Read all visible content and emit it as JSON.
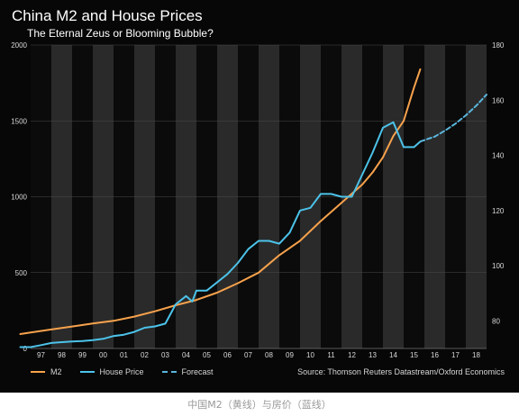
{
  "caption": "中国M2（黄线）与房价（蓝线）",
  "colors": {
    "m2": "#f7a24c",
    "house": "#4cc3ea",
    "forecast": "#5ab6dd",
    "band": "#2a2a2a",
    "grid": "#4a4a4a",
    "text": "#d8d8d8"
  },
  "chart_data": {
    "type": "line",
    "title": "China M2 and House Prices",
    "subtitle": "The Eternal Zeus or Blooming Bubble?",
    "x_tick_labels": [
      "97",
      "98",
      "99",
      "00",
      "01",
      "02",
      "03",
      "04",
      "05",
      "06",
      "07",
      "08",
      "09",
      "10",
      "11",
      "12",
      "13",
      "14",
      "15",
      "16",
      "17",
      "18"
    ],
    "x_range": [
      1997,
      2019
    ],
    "y_left": {
      "range": [
        0,
        2000
      ],
      "ticks": [
        "0",
        "500",
        "1000",
        "1500",
        "2000"
      ]
    },
    "y_right": {
      "range": [
        70,
        180
      ],
      "ticks": [
        "80",
        "100",
        "120",
        "140",
        "160",
        "180"
      ]
    },
    "legend_position": "bottom-left",
    "legend": [
      {
        "name": "M2",
        "color": "#f7a24c",
        "style": "solid"
      },
      {
        "name": "House Price",
        "color": "#4cc3ea",
        "style": "solid"
      },
      {
        "name": "Forecast",
        "color": "#5ab6dd",
        "style": "dashed"
      }
    ],
    "source": "Source: Thomson Reuters Datastream/Oxford Economics",
    "series": [
      {
        "name": "M2",
        "axis": "left",
        "x": [
          1996.5,
          1997,
          1998,
          1999,
          2000,
          2001,
          2002,
          2003,
          2004,
          2005,
          2006,
          2007,
          2008,
          2009,
          2010,
          2011,
          2012,
          2013,
          2013.5,
          2014,
          2014.5,
          2015,
          2015.5,
          2015.8
        ],
        "y": [
          95,
          105,
          125,
          145,
          165,
          182,
          210,
          245,
          285,
          320,
          368,
          430,
          500,
          615,
          710,
          840,
          960,
          1080,
          1160,
          1260,
          1400,
          1500,
          1720,
          1840
        ]
      },
      {
        "name": "House Price",
        "axis": "right",
        "x": [
          1996.5,
          1997,
          1997.5,
          1998,
          1998.5,
          1999,
          1999.5,
          2000,
          2000.5,
          2001,
          2001.5,
          2002,
          2002.5,
          2003,
          2003.5,
          2004,
          2004.5,
          2004.8,
          2005,
          2005.5,
          2006,
          2006.5,
          2007,
          2007.5,
          2008,
          2008.5,
          2009,
          2009.5,
          2010,
          2010.5,
          2011,
          2011.5,
          2012,
          2012.5,
          2013,
          2013.5,
          2014,
          2014.5,
          2015,
          2015.5,
          2015.8
        ],
        "y": [
          70.5,
          70.5,
          71.2,
          72,
          72.3,
          72.5,
          72.7,
          73,
          73.5,
          74.5,
          75,
          76,
          77.5,
          78,
          79,
          86,
          89,
          87,
          91,
          91,
          94,
          97,
          101,
          106,
          109,
          109,
          108,
          112,
          120,
          121,
          126,
          126,
          125,
          125,
          133,
          141,
          150,
          152,
          143,
          143,
          145
        ]
      },
      {
        "name": "Forecast",
        "axis": "right",
        "x": [
          2015.8,
          2016.5,
          2017,
          2017.5,
          2018,
          2018.5,
          2019
        ],
        "y": [
          145,
          146.8,
          149,
          151.5,
          154.5,
          158,
          162
        ]
      }
    ]
  }
}
